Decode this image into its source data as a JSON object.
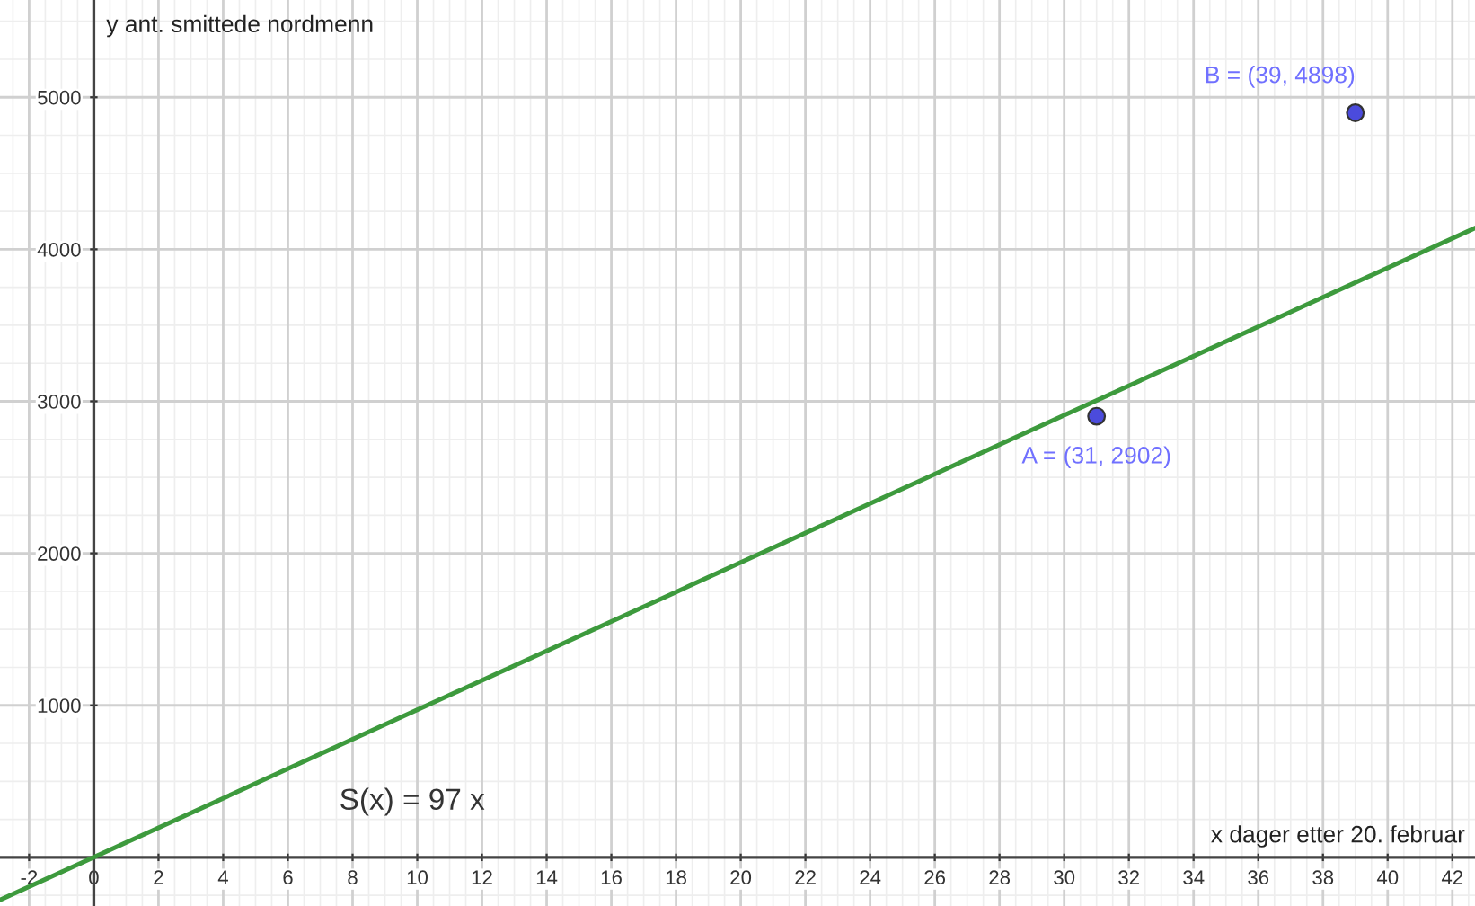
{
  "chart_data": {
    "type": "line",
    "xlabel": "x dager etter 20. februar",
    "ylabel": "y ant. smittede nordmenn",
    "series": [
      {
        "color": "#3d9a3d",
        "x": [
          -2.9,
          42.7
        ],
        "values": [
          -280,
          4140
        ]
      },
      {
        "type": "scatter",
        "marker": "circle",
        "color": "#4b4bdc",
        "x": [
          31,
          39
        ],
        "values": [
          2902,
          4898
        ],
        "value_labels": [
          "A = (31, 2902)",
          "B = (39, 4898)"
        ]
      }
    ],
    "annotations": [
      "S(x) = 97 x"
    ],
    "xlim": [
      -2.9,
      42.7
    ],
    "ylim": [
      -320,
      5640
    ],
    "xticks": [
      -2,
      0,
      2,
      4,
      6,
      8,
      10,
      12,
      14,
      16,
      18,
      20,
      22,
      24,
      26,
      28,
      30,
      32,
      34,
      36,
      38,
      40,
      42
    ],
    "yticks": [
      1000,
      2000,
      3000,
      4000,
      5000
    ],
    "grid": true
  }
}
